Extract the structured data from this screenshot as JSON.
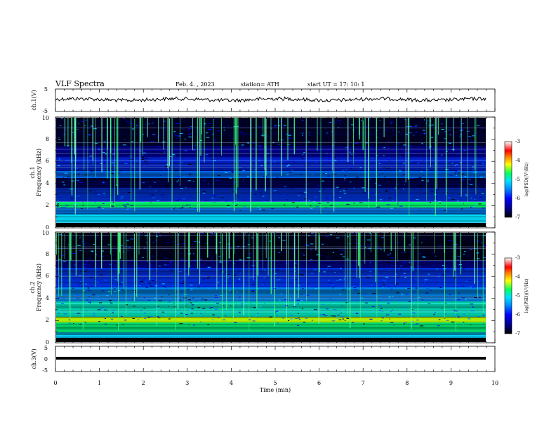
{
  "header": {
    "title": "VLF  Spectra",
    "date": "Feb. 4. , 2023",
    "station": "station= ATH",
    "start_ut": "start  UT  =    17: 10: 1"
  },
  "colors": {
    "trace": "#000000",
    "colormap": [
      "#000000",
      "#00008b",
      "#0000ff",
      "#0080ff",
      "#00d0ff",
      "#00ff80",
      "#ffff00",
      "#ff8000",
      "#ff0000",
      "#ffffff"
    ]
  },
  "chart_data": [
    {
      "type": "line",
      "ylabel": "ch.1(V)",
      "ylim": [
        -5,
        5
      ],
      "yticks": [
        "5",
        "-5"
      ],
      "note": "time series trace near 0 V with small fluctuations"
    },
    {
      "type": "heatmap",
      "ylabel_line1": "ch.1",
      "ylabel_line2": "Frequency  (kHz)",
      "ylim": [
        0,
        10
      ],
      "yticks": [
        "0",
        "2",
        "4",
        "6",
        "8",
        "10"
      ],
      "colorbar": {
        "label": "log(PSD)(V²/Hz)",
        "range": [
          -7,
          -3
        ],
        "ticks": [
          "-3",
          "-4",
          "-5",
          "-6",
          "-7"
        ]
      }
    },
    {
      "type": "heatmap",
      "ylabel_line1": "ch.2",
      "ylabel_line2": "Frequency  (kHz)",
      "ylim": [
        0,
        10
      ],
      "yticks": [
        "0",
        "2",
        "4",
        "6",
        "8",
        "10"
      ],
      "colorbar": {
        "label": "log(PSD)(V²/Hz)",
        "range": [
          -7,
          -3
        ],
        "ticks": [
          "-3",
          "-4",
          "-5",
          "-6",
          "-7"
        ]
      }
    },
    {
      "type": "line",
      "ylabel": "ch.3(V)",
      "ylim": [
        -5,
        5
      ],
      "yticks": [
        "5",
        "0",
        "-5"
      ],
      "note": "flat trace slightly below 0 V",
      "xlabel": "Time  (min)",
      "xlim": [
        0,
        10
      ],
      "xticks": [
        "0",
        "1",
        "2",
        "3",
        "4",
        "5",
        "6",
        "7",
        "8",
        "9",
        "10"
      ]
    }
  ]
}
